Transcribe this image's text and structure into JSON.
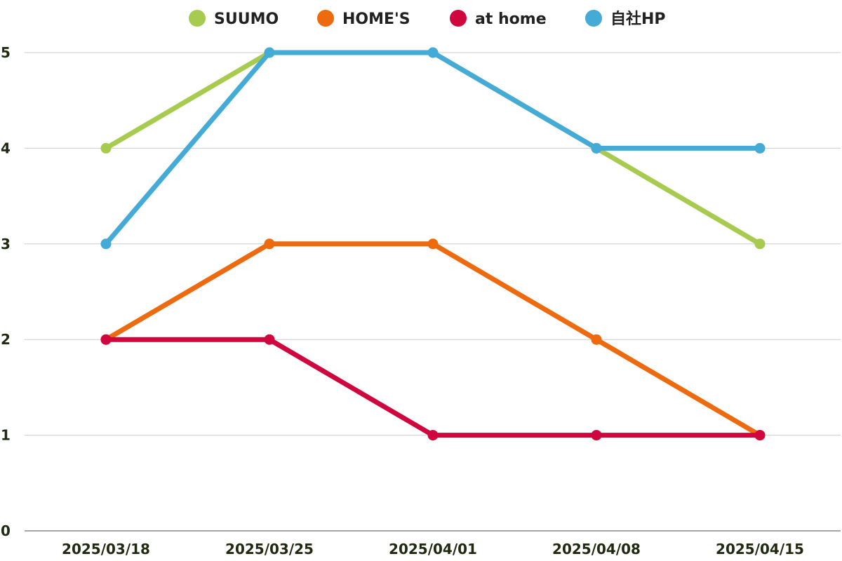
{
  "chart_data": {
    "type": "line",
    "x": [
      "2025/03/18",
      "2025/03/25",
      "2025/04/01",
      "2025/04/08",
      "2025/04/15"
    ],
    "ylim": [
      0,
      5
    ],
    "yticks": [
      "0",
      "1",
      "2",
      "3",
      "4",
      "5"
    ],
    "grid": true,
    "legend_position": "top",
    "series": [
      {
        "name": "SUUMO",
        "color": "#a6cb4e",
        "values": [
          4,
          5,
          5,
          4,
          3
        ]
      },
      {
        "name": "HOME'S",
        "color": "#ee6a0e",
        "values": [
          2,
          3,
          3,
          2,
          1
        ]
      },
      {
        "name": "at home",
        "color": "#d0063e",
        "values": [
          2,
          2,
          1,
          1,
          1
        ]
      },
      {
        "name": "自社HP",
        "color": "#43abd6",
        "values": [
          3,
          5,
          5,
          4,
          4
        ]
      }
    ]
  }
}
